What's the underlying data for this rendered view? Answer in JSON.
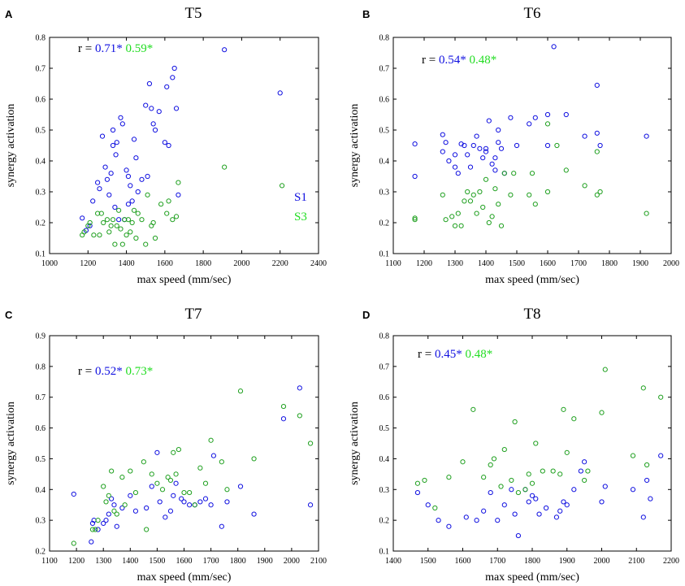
{
  "colors": {
    "s1": "#1010e0",
    "s3": "#20a020",
    "r_s3": "#22dd22",
    "axis": "#000000"
  },
  "chart_data": [
    {
      "id": "A",
      "type": "scatter",
      "title": "T5",
      "xlabel": "max speed (mm/sec)",
      "ylabel": "synergy activation",
      "xlim": [
        1000,
        2400
      ],
      "ylim": [
        0.1,
        0.8
      ],
      "xticks": [
        1000,
        1200,
        1400,
        1600,
        1800,
        2000,
        2200,
        2400
      ],
      "yticks": [
        0.1,
        0.2,
        0.3,
        0.4,
        0.5,
        0.6,
        0.7,
        0.8
      ],
      "r_label": "r =",
      "r_s1": "0.71*",
      "r_s3": "0.59*",
      "legend": [
        "S1",
        "S3"
      ],
      "series": [
        {
          "name": "S1",
          "x": [
            1170,
            1190,
            1210,
            1225,
            1250,
            1260,
            1275,
            1290,
            1300,
            1310,
            1320,
            1330,
            1330,
            1340,
            1345,
            1350,
            1360,
            1370,
            1380,
            1390,
            1400,
            1410,
            1410,
            1420,
            1430,
            1440,
            1450,
            1460,
            1480,
            1500,
            1510,
            1520,
            1530,
            1540,
            1550,
            1570,
            1600,
            1610,
            1620,
            1640,
            1650,
            1660,
            1670,
            1910,
            2200
          ],
          "y": [
            0.215,
            0.175,
            0.19,
            0.27,
            0.33,
            0.31,
            0.48,
            0.38,
            0.34,
            0.29,
            0.36,
            0.45,
            0.5,
            0.25,
            0.42,
            0.46,
            0.21,
            0.54,
            0.52,
            0.21,
            0.37,
            0.35,
            0.26,
            0.32,
            0.27,
            0.47,
            0.41,
            0.3,
            0.34,
            0.58,
            0.35,
            0.65,
            0.57,
            0.52,
            0.5,
            0.56,
            0.46,
            0.64,
            0.45,
            0.67,
            0.7,
            0.57,
            0.29,
            0.76,
            0.62
          ]
        },
        {
          "name": "S3",
          "x": [
            1170,
            1180,
            1200,
            1210,
            1230,
            1250,
            1260,
            1270,
            1280,
            1300,
            1310,
            1320,
            1330,
            1340,
            1350,
            1360,
            1370,
            1380,
            1390,
            1400,
            1410,
            1420,
            1430,
            1440,
            1450,
            1460,
            1480,
            1500,
            1510,
            1530,
            1540,
            1550,
            1580,
            1610,
            1620,
            1640,
            1660,
            1670,
            1910,
            2210
          ],
          "y": [
            0.16,
            0.17,
            0.19,
            0.2,
            0.16,
            0.23,
            0.16,
            0.23,
            0.2,
            0.21,
            0.17,
            0.19,
            0.21,
            0.13,
            0.19,
            0.24,
            0.18,
            0.13,
            0.21,
            0.16,
            0.21,
            0.17,
            0.2,
            0.24,
            0.15,
            0.23,
            0.21,
            0.13,
            0.29,
            0.19,
            0.2,
            0.15,
            0.26,
            0.23,
            0.27,
            0.21,
            0.22,
            0.33,
            0.38,
            0.32
          ]
        }
      ]
    },
    {
      "id": "B",
      "type": "scatter",
      "title": "T6",
      "xlabel": "max speed (mm/sec)",
      "ylabel": "synergy activation",
      "xlim": [
        1100,
        2000
      ],
      "ylim": [
        0.1,
        0.8
      ],
      "xticks": [
        1100,
        1200,
        1300,
        1400,
        1500,
        1600,
        1700,
        1800,
        1900,
        2000
      ],
      "yticks": [
        0.1,
        0.2,
        0.3,
        0.4,
        0.5,
        0.6,
        0.7,
        0.8
      ],
      "r_label": "r =",
      "r_s1": "0.54*",
      "r_s3": "0.48*",
      "legend": [],
      "series": [
        {
          "name": "S1",
          "x": [
            1170,
            1170,
            1260,
            1260,
            1270,
            1280,
            1300,
            1300,
            1310,
            1320,
            1330,
            1340,
            1350,
            1360,
            1370,
            1380,
            1390,
            1400,
            1400,
            1410,
            1420,
            1430,
            1430,
            1440,
            1440,
            1450,
            1460,
            1480,
            1500,
            1540,
            1560,
            1600,
            1600,
            1620,
            1660,
            1720,
            1760,
            1760,
            1770,
            1920
          ],
          "y": [
            0.455,
            0.35,
            0.485,
            0.43,
            0.46,
            0.4,
            0.42,
            0.38,
            0.36,
            0.455,
            0.45,
            0.42,
            0.38,
            0.45,
            0.48,
            0.44,
            0.41,
            0.43,
            0.44,
            0.53,
            0.39,
            0.41,
            0.37,
            0.5,
            0.46,
            0.44,
            0.36,
            0.54,
            0.45,
            0.52,
            0.54,
            0.55,
            0.45,
            0.77,
            0.55,
            0.48,
            0.645,
            0.49,
            0.45,
            0.48
          ]
        },
        {
          "name": "S3",
          "x": [
            1170,
            1170,
            1260,
            1270,
            1290,
            1300,
            1310,
            1320,
            1330,
            1340,
            1350,
            1360,
            1370,
            1380,
            1390,
            1400,
            1410,
            1420,
            1430,
            1440,
            1450,
            1460,
            1480,
            1490,
            1540,
            1550,
            1560,
            1600,
            1600,
            1630,
            1660,
            1720,
            1760,
            1760,
            1770,
            1920
          ],
          "y": [
            0.21,
            0.215,
            0.29,
            0.21,
            0.22,
            0.19,
            0.23,
            0.19,
            0.27,
            0.3,
            0.27,
            0.29,
            0.23,
            0.3,
            0.25,
            0.34,
            0.2,
            0.22,
            0.31,
            0.26,
            0.19,
            0.36,
            0.29,
            0.36,
            0.29,
            0.36,
            0.26,
            0.52,
            0.3,
            0.45,
            0.37,
            0.32,
            0.29,
            0.43,
            0.3,
            0.23
          ]
        }
      ]
    },
    {
      "id": "C",
      "type": "scatter",
      "title": "T7",
      "xlabel": "max speed (mm/sec)",
      "ylabel": "synergy activation",
      "xlim": [
        1100,
        2100
      ],
      "ylim": [
        0.2,
        0.9
      ],
      "xticks": [
        1100,
        1200,
        1300,
        1400,
        1500,
        1600,
        1700,
        1800,
        1900,
        2000,
        2100
      ],
      "yticks": [
        0.2,
        0.3,
        0.4,
        0.5,
        0.6,
        0.7,
        0.8,
        0.9
      ],
      "r_label": "r =",
      "r_s1": "0.52*",
      "r_s3": "0.73*",
      "legend": [],
      "series": [
        {
          "name": "S1",
          "x": [
            1190,
            1255,
            1260,
            1265,
            1280,
            1300,
            1310,
            1320,
            1330,
            1340,
            1350,
            1370,
            1400,
            1420,
            1460,
            1480,
            1500,
            1510,
            1530,
            1550,
            1560,
            1570,
            1590,
            1600,
            1620,
            1640,
            1660,
            1680,
            1700,
            1710,
            1740,
            1760,
            1810,
            1860,
            1970,
            2030,
            2070
          ],
          "y": [
            0.385,
            0.23,
            0.29,
            0.3,
            0.27,
            0.29,
            0.3,
            0.32,
            0.37,
            0.35,
            0.28,
            0.34,
            0.38,
            0.33,
            0.34,
            0.41,
            0.52,
            0.36,
            0.31,
            0.33,
            0.38,
            0.42,
            0.37,
            0.36,
            0.35,
            0.35,
            0.36,
            0.37,
            0.35,
            0.51,
            0.28,
            0.36,
            0.41,
            0.32,
            0.63,
            0.73,
            0.35
          ]
        },
        {
          "name": "S3",
          "x": [
            1190,
            1260,
            1270,
            1280,
            1300,
            1310,
            1320,
            1330,
            1340,
            1350,
            1370,
            1380,
            1400,
            1420,
            1450,
            1460,
            1480,
            1500,
            1520,
            1540,
            1550,
            1560,
            1570,
            1580,
            1600,
            1620,
            1640,
            1660,
            1680,
            1700,
            1740,
            1760,
            1810,
            1860,
            1970,
            2030,
            2070
          ],
          "y": [
            0.225,
            0.27,
            0.27,
            0.3,
            0.41,
            0.36,
            0.38,
            0.46,
            0.33,
            0.32,
            0.44,
            0.35,
            0.46,
            0.39,
            0.49,
            0.27,
            0.45,
            0.42,
            0.4,
            0.44,
            0.43,
            0.52,
            0.45,
            0.53,
            0.39,
            0.39,
            0.35,
            0.47,
            0.42,
            0.56,
            0.49,
            0.4,
            0.72,
            0.5,
            0.67,
            0.64,
            0.55
          ]
        }
      ]
    },
    {
      "id": "D",
      "type": "scatter",
      "title": "T8",
      "xlabel": "max speed (mm/sec)",
      "ylabel": "synergy activation",
      "xlim": [
        1400,
        2200
      ],
      "ylim": [
        0.1,
        0.8
      ],
      "xticks": [
        1400,
        1500,
        1600,
        1700,
        1800,
        1900,
        2000,
        2100,
        2200
      ],
      "yticks": [
        0.1,
        0.2,
        0.3,
        0.4,
        0.5,
        0.6,
        0.7,
        0.8
      ],
      "r_label": "r =",
      "r_s1": "0.45*",
      "r_s3": "0.48*",
      "legend": [],
      "series": [
        {
          "name": "S1",
          "x": [
            1470,
            1500,
            1530,
            1560,
            1610,
            1640,
            1660,
            1680,
            1700,
            1720,
            1740,
            1750,
            1760,
            1780,
            1790,
            1800,
            1810,
            1820,
            1840,
            1870,
            1880,
            1890,
            1900,
            1920,
            1940,
            1950,
            2000,
            2010,
            2090,
            2120,
            2130,
            2140,
            2170
          ],
          "y": [
            0.29,
            0.25,
            0.2,
            0.18,
            0.21,
            0.2,
            0.23,
            0.29,
            0.2,
            0.25,
            0.3,
            0.22,
            0.15,
            0.3,
            0.26,
            0.28,
            0.27,
            0.22,
            0.24,
            0.21,
            0.23,
            0.26,
            0.25,
            0.3,
            0.36,
            0.39,
            0.26,
            0.31,
            0.3,
            0.21,
            0.33,
            0.27,
            0.41
          ]
        },
        {
          "name": "S3",
          "x": [
            1470,
            1490,
            1520,
            1560,
            1600,
            1630,
            1660,
            1680,
            1690,
            1710,
            1720,
            1740,
            1750,
            1760,
            1780,
            1790,
            1800,
            1810,
            1830,
            1860,
            1880,
            1890,
            1900,
            1920,
            1950,
            1960,
            2000,
            2010,
            2090,
            2120,
            2130,
            2170
          ],
          "y": [
            0.32,
            0.33,
            0.24,
            0.34,
            0.39,
            0.56,
            0.34,
            0.38,
            0.4,
            0.31,
            0.43,
            0.33,
            0.52,
            0.29,
            0.3,
            0.35,
            0.32,
            0.45,
            0.36,
            0.36,
            0.35,
            0.56,
            0.42,
            0.53,
            0.33,
            0.36,
            0.55,
            0.69,
            0.41,
            0.63,
            0.38,
            0.6
          ]
        }
      ]
    }
  ]
}
